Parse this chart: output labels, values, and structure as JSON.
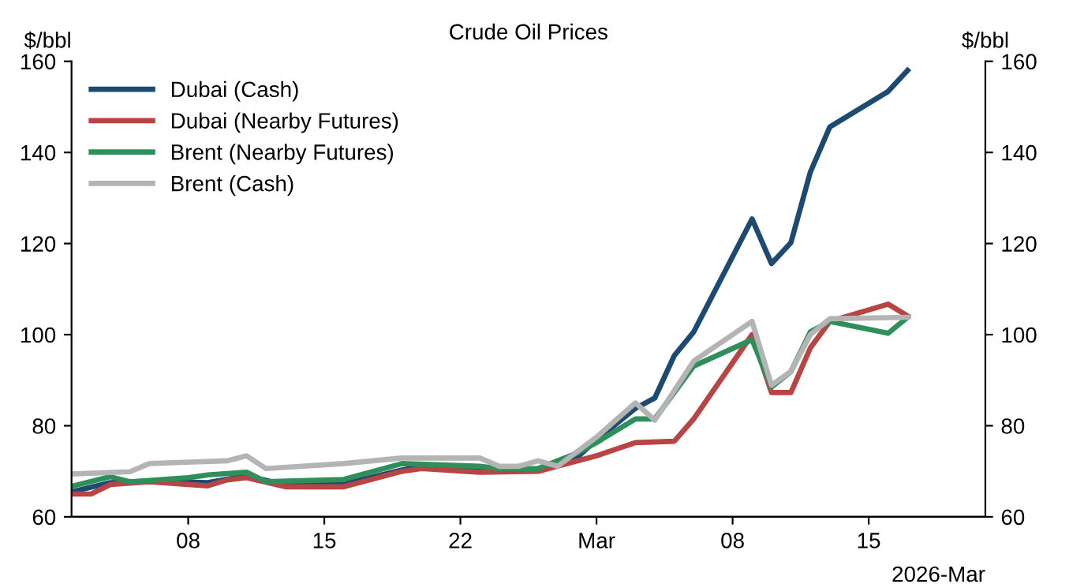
{
  "chart_data": {
    "type": "line",
    "title": "Crude Oil Prices",
    "ylabel": "$/bbl",
    "y2label": "$/bbl",
    "xlabel": "2026-Mar",
    "xlim": [
      "2026-02-02",
      "2026-03-21"
    ],
    "xticks": [
      {
        "value": "2026-02-08",
        "label": "08"
      },
      {
        "value": "2026-02-15",
        "label": "15"
      },
      {
        "value": "2026-02-22",
        "label": "22"
      },
      {
        "value": "2026-03-01",
        "label": "Mar"
      },
      {
        "value": "2026-03-08",
        "label": "08"
      },
      {
        "value": "2026-03-15",
        "label": "15"
      }
    ],
    "ylim": [
      60,
      160
    ],
    "yticks": [
      60,
      80,
      100,
      120,
      140,
      160
    ],
    "y2lim": [
      60,
      160
    ],
    "y2ticks": [
      60,
      80,
      100,
      120,
      140,
      160
    ],
    "grid": false,
    "legend": "top left",
    "marker": "none",
    "line_style": "solid",
    "series": [
      {
        "name": "Dubai (Cash)",
        "color": "#1c4a72",
        "x": [
          "2026-02-02",
          "2026-02-04",
          "2026-02-06",
          "2026-02-09",
          "2026-02-11",
          "2026-02-13",
          "2026-02-16",
          "2026-02-19",
          "2026-02-20",
          "2026-02-23",
          "2026-02-26",
          "2026-02-28",
          "2026-03-01",
          "2026-03-03",
          "2026-03-04",
          "2026-03-05",
          "2026-03-06",
          "2026-03-09",
          "2026-03-10",
          "2026-03-11",
          "2026-03-12",
          "2026-03-13",
          "2026-03-16",
          "2026-03-17"
        ],
        "values": [
          65.5,
          67.5,
          67.8,
          67.5,
          69,
          67,
          67.2,
          70.3,
          71,
          70.5,
          70.5,
          73,
          76.9,
          83.8,
          86.1,
          95.4,
          100.6,
          125.4,
          115.6,
          120.2,
          135.7,
          145.6,
          153.4,
          158
        ]
      },
      {
        "name": "Dubai (Nearby Futures)",
        "color": "#b94444",
        "x": [
          "2026-02-02",
          "2026-02-03",
          "2026-02-04",
          "2026-02-06",
          "2026-02-09",
          "2026-02-10",
          "2026-02-11",
          "2026-02-13",
          "2026-02-16",
          "2026-02-19",
          "2026-02-20",
          "2026-02-23",
          "2026-02-26",
          "2026-03-01",
          "2026-03-03",
          "2026-03-05",
          "2026-03-06",
          "2026-03-09",
          "2026-03-10",
          "2026-03-11",
          "2026-03-12",
          "2026-03-13",
          "2026-03-16",
          "2026-03-17"
        ],
        "values": [
          65,
          65,
          67.1,
          67.7,
          66.8,
          68.1,
          68.6,
          66.6,
          66.6,
          70,
          70.6,
          69.8,
          70,
          73.4,
          76.3,
          76.6,
          81.5,
          100,
          87.3,
          87.3,
          97.1,
          102.9,
          106.7,
          104.1
        ]
      },
      {
        "name": "Brent (Nearby Futures)",
        "color": "#2f8f5b",
        "x": [
          "2026-02-02",
          "2026-02-04",
          "2026-02-05",
          "2026-02-08",
          "2026-02-09",
          "2026-02-11",
          "2026-02-12",
          "2026-02-16",
          "2026-02-19",
          "2026-02-23",
          "2026-02-24",
          "2026-02-26",
          "2026-02-28",
          "2026-03-01",
          "2026-03-03",
          "2026-03-04",
          "2026-03-06",
          "2026-03-09",
          "2026-03-10",
          "2026-03-11",
          "2026-03-12",
          "2026-03-13",
          "2026-03-16",
          "2026-03-17"
        ],
        "values": [
          66.7,
          68.8,
          67.7,
          68.6,
          69.2,
          69.8,
          67.7,
          68.2,
          71.7,
          71.1,
          70.6,
          70.6,
          74,
          76.3,
          81.5,
          81.5,
          93.1,
          98.9,
          88.5,
          91.9,
          100.6,
          102.9,
          100.3,
          103.8
        ]
      },
      {
        "name": "Brent (Cash)",
        "color": "#b4b4b4",
        "x": [
          "2026-02-02",
          "2026-02-05",
          "2026-02-06",
          "2026-02-10",
          "2026-02-11",
          "2026-02-12",
          "2026-02-16",
          "2026-02-19",
          "2026-02-23",
          "2026-02-24",
          "2026-02-25",
          "2026-02-26",
          "2026-02-27",
          "2026-03-01",
          "2026-03-03",
          "2026-03-04",
          "2026-03-06",
          "2026-03-09",
          "2026-03-10",
          "2026-03-11",
          "2026-03-12",
          "2026-03-13",
          "2026-03-17"
        ],
        "values": [
          69.4,
          69.9,
          71.7,
          72.3,
          73.4,
          70.6,
          71.7,
          72.9,
          72.9,
          71.1,
          71.1,
          72.3,
          71.1,
          77.5,
          85,
          81.2,
          94.2,
          102.9,
          88.9,
          91.9,
          100,
          103.5,
          103.8
        ]
      }
    ]
  }
}
